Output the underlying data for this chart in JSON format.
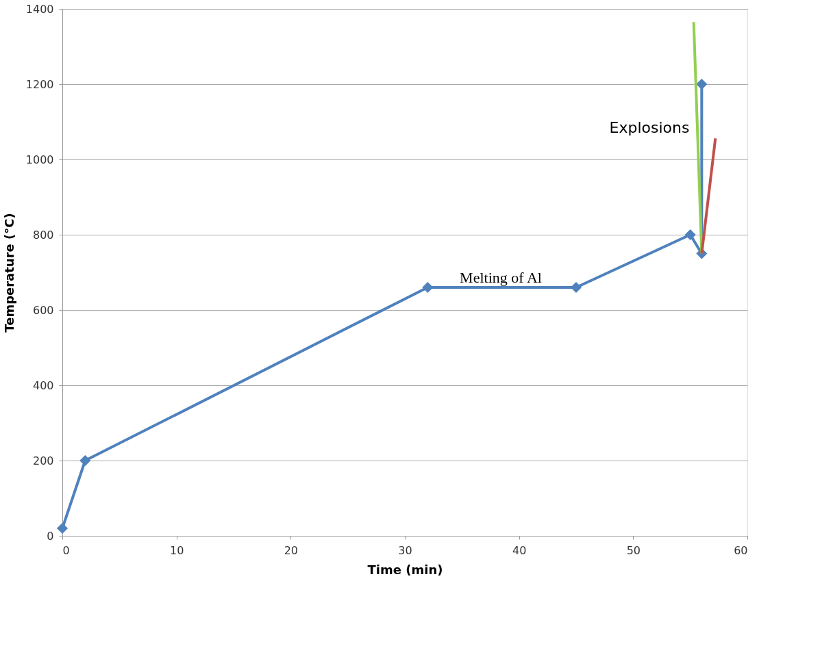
{
  "chart_data": {
    "type": "line",
    "xlabel": "Time (min)",
    "ylabel": "Temperature (°C)",
    "xlim": [
      0,
      60
    ],
    "xticks": [
      0,
      10,
      20,
      30,
      40,
      50,
      60
    ],
    "ylim": [
      0,
      1400
    ],
    "yticks": [
      0,
      200,
      400,
      600,
      800,
      1000,
      1200,
      1400
    ],
    "grid": "y",
    "series": [
      {
        "color": "#4f81bd",
        "marker": "diamond",
        "x": [
          0,
          2,
          32,
          45,
          55,
          56,
          56
        ],
        "values": [
          20,
          200,
          660,
          660,
          800,
          750,
          1200
        ]
      },
      {
        "color": "#92d050",
        "marker": "none",
        "x": [
          56,
          55.3
        ],
        "values": [
          750,
          1365
        ]
      },
      {
        "color": "#c0504d",
        "marker": "none",
        "x": [
          56,
          57.2
        ],
        "values": [
          750,
          1056
        ]
      }
    ],
    "annotations": [
      "Melting of Al",
      "Explosions"
    ]
  }
}
